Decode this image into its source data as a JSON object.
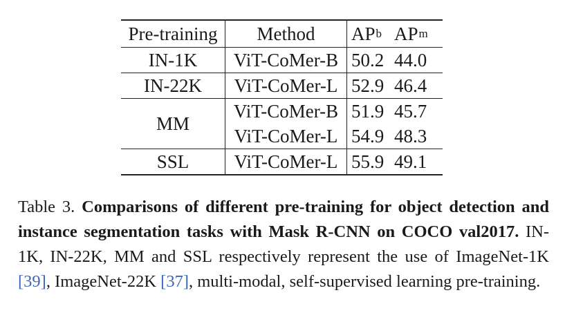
{
  "table": {
    "headers": {
      "pretraining": "Pre-training",
      "method": "Method",
      "apb_base": "AP",
      "apb_sup": "b",
      "apm_base": "AP",
      "apm_sup": "m"
    },
    "rows": [
      {
        "pretraining": "IN-1K",
        "method": "ViT-CoMer-B",
        "apb": "50.2",
        "apm": "44.0"
      },
      {
        "pretraining": "IN-22K",
        "method": "ViT-CoMer-L",
        "apb": "52.9",
        "apm": "46.4"
      },
      {
        "pretraining": "MM",
        "method": "ViT-CoMer-B",
        "apb": "51.9",
        "apm": "45.7"
      },
      {
        "pretraining": "",
        "method": "ViT-CoMer-L",
        "apb": "54.9",
        "apm": "48.3"
      },
      {
        "pretraining": "SSL",
        "method": "ViT-CoMer-L",
        "apb": "55.9",
        "apm": "49.1"
      }
    ]
  },
  "caption": {
    "label": "Table 3.",
    "title": "Comparisons of different pre-training for object detection and instance segmentation tasks with Mask R-CNN on COCO val2017.",
    "body_1": "IN-1K, IN-22K, MM and SSL respectively represent the use of ImageNet-1K",
    "ref_1": "[39]",
    "body_2": ", ImageNet-22K",
    "ref_2": "[37]",
    "body_3": ", multi-modal, self-supervised learning pre-training.",
    "ref_color": "#3b66b8"
  }
}
